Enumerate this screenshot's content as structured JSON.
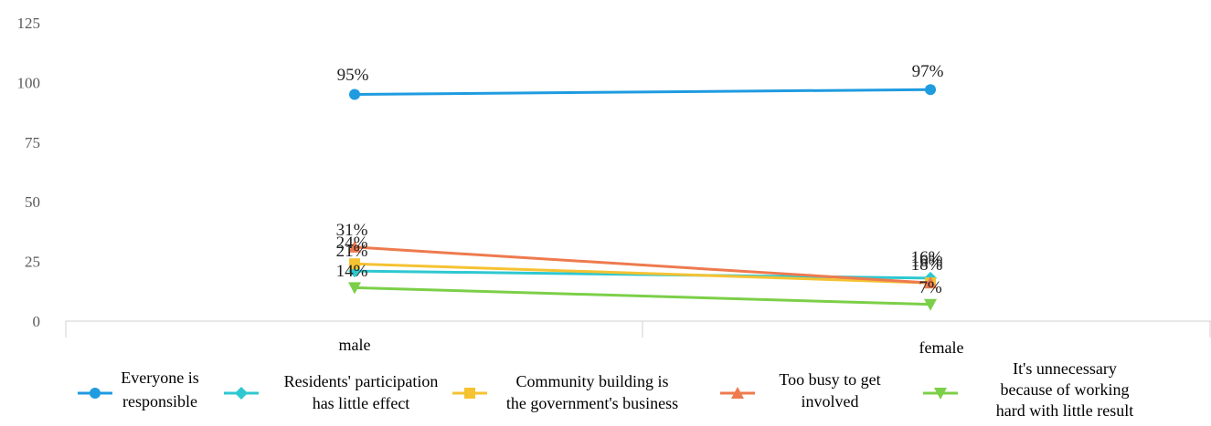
{
  "chart_data": {
    "type": "line",
    "categories": [
      "male",
      "female"
    ],
    "ylim": [
      0,
      125
    ],
    "yticks": [
      0,
      25,
      50,
      75,
      100,
      125
    ],
    "grid": false,
    "legend_position": "bottom",
    "series": [
      {
        "name": "Everyone is responsible",
        "name_lines": [
          "Everyone is",
          "responsible"
        ],
        "values": [
          95,
          97
        ],
        "labels": [
          "95%",
          "97%"
        ],
        "color": "#1f9be0",
        "marker": "circle"
      },
      {
        "name": "Residents' participation has little effect",
        "name_lines": [
          "Residents' participation",
          "has little effect"
        ],
        "values": [
          21,
          18
        ],
        "labels": [
          "21%",
          "18%"
        ],
        "color": "#2ec8d0",
        "marker": "diamond"
      },
      {
        "name": "Community building is the government's business",
        "name_lines": [
          "Community building is",
          "the government's business"
        ],
        "values": [
          24,
          16
        ],
        "labels": [
          "24%",
          "16%"
        ],
        "color": "#f5c232",
        "marker": "square"
      },
      {
        "name": "Too busy to get involved",
        "name_lines": [
          "Too busy to get",
          "involved"
        ],
        "values": [
          31,
          16
        ],
        "labels": [
          "31%",
          "16%"
        ],
        "color": "#ee7a4e",
        "marker": "triangle-up"
      },
      {
        "name": "It's unnecessary because of working hard with little result",
        "name_lines": [
          "It's unnecessary",
          "because of working",
          "hard with little result"
        ],
        "values": [
          14,
          7
        ],
        "labels": [
          "14%",
          "7%"
        ],
        "color": "#7ccf48",
        "marker": "triangle-down"
      }
    ]
  }
}
